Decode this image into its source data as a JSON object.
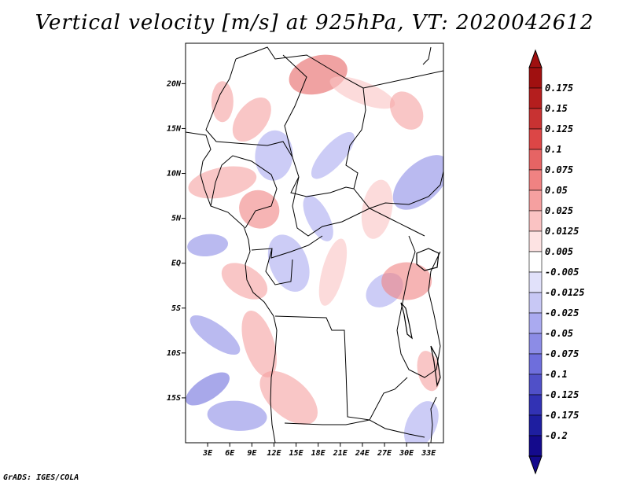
{
  "title": "Vertical velocity [m/s] at 925hPa, VT: 2020042612",
  "credit": "GrADS: IGES/COLA",
  "chart_data": {
    "type": "heatmap",
    "title": "Vertical velocity [m/s] at 925hPa, VT: 2020042612",
    "variable": "Vertical velocity",
    "units": "m/s",
    "level": "925hPa",
    "valid_time": "2020042612",
    "lon_range": [
      0,
      35
    ],
    "lat_range": [
      -20,
      24.5
    ],
    "x_ticks": [
      {
        "value": 3,
        "label": "3E"
      },
      {
        "value": 6,
        "label": "6E"
      },
      {
        "value": 9,
        "label": "9E"
      },
      {
        "value": 12,
        "label": "12E"
      },
      {
        "value": 15,
        "label": "15E"
      },
      {
        "value": 18,
        "label": "18E"
      },
      {
        "value": 21,
        "label": "21E"
      },
      {
        "value": 24,
        "label": "24E"
      },
      {
        "value": 27,
        "label": "27E"
      },
      {
        "value": 30,
        "label": "30E"
      },
      {
        "value": 33,
        "label": "33E"
      }
    ],
    "y_ticks": [
      {
        "value": 20,
        "label": "20N"
      },
      {
        "value": 15,
        "label": "15N"
      },
      {
        "value": 10,
        "label": "10N"
      },
      {
        "value": 5,
        "label": "5N"
      },
      {
        "value": 0,
        "label": "EQ"
      },
      {
        "value": -5,
        "label": "5S"
      },
      {
        "value": -10,
        "label": "10S"
      },
      {
        "value": -15,
        "label": "15S"
      }
    ],
    "colorbar": {
      "labels": [
        "0.175",
        "0.15",
        "0.125",
        "0.1",
        "0.075",
        "0.05",
        "0.025",
        "0.0125",
        "0.005",
        "-0.005",
        "-0.0125",
        "-0.025",
        "-0.05",
        "-0.075",
        "-0.1",
        "-0.125",
        "-0.175",
        "-0.2"
      ],
      "colors": [
        "#a01010",
        "#b41e1e",
        "#c83232",
        "#dc4646",
        "#e66464",
        "#f08282",
        "#f5a0a0",
        "#fac3c3",
        "#fde3e3",
        "#ffffff",
        "#e1e1fa",
        "#c8c8f5",
        "#aaaaf0",
        "#8c8ce6",
        "#6e6edc",
        "#5050c8",
        "#3232b4",
        "#1e1ea0",
        "#140a8c"
      ],
      "top_arrow_color": "#a01010",
      "bottom_arrow_color": "#140a8c"
    },
    "field_samples": [
      {
        "lon": 5,
        "lat": 18,
        "w": 0.03
      },
      {
        "lon": 9,
        "lat": 16,
        "w": 0.05
      },
      {
        "lon": 18,
        "lat": 21,
        "w": 0.1
      },
      {
        "lon": 24,
        "lat": 19,
        "w": 0.025
      },
      {
        "lon": 30,
        "lat": 17,
        "w": 0.04
      },
      {
        "lon": 12,
        "lat": 12,
        "w": -0.025
      },
      {
        "lon": 20,
        "lat": 12,
        "w": -0.04
      },
      {
        "lon": 5,
        "lat": 9,
        "w": 0.03
      },
      {
        "lon": 10,
        "lat": 6,
        "w": 0.075
      },
      {
        "lon": 18,
        "lat": 5,
        "w": -0.03
      },
      {
        "lon": 26,
        "lat": 6,
        "w": 0.025
      },
      {
        "lon": 32,
        "lat": 9,
        "w": -0.05
      },
      {
        "lon": 3,
        "lat": 2,
        "w": -0.05
      },
      {
        "lon": 8,
        "lat": -2,
        "w": 0.05
      },
      {
        "lon": 14,
        "lat": 0,
        "w": -0.04
      },
      {
        "lon": 20,
        "lat": -1,
        "w": 0.02
      },
      {
        "lon": 27,
        "lat": -3,
        "w": -0.025
      },
      {
        "lon": 30,
        "lat": -2,
        "w": 0.075
      },
      {
        "lon": 4,
        "lat": -8,
        "w": -0.06
      },
      {
        "lon": 10,
        "lat": -9,
        "w": 0.03
      },
      {
        "lon": 25,
        "lat": -12,
        "w": 0.004
      },
      {
        "lon": 3,
        "lat": -14,
        "w": -0.08
      },
      {
        "lon": 7,
        "lat": -17,
        "w": -0.06
      },
      {
        "lon": 14,
        "lat": -15,
        "w": 0.03
      },
      {
        "lon": 33,
        "lat": -12,
        "w": 0.05
      },
      {
        "lon": 32,
        "lat": -18,
        "w": -0.04
      }
    ]
  }
}
